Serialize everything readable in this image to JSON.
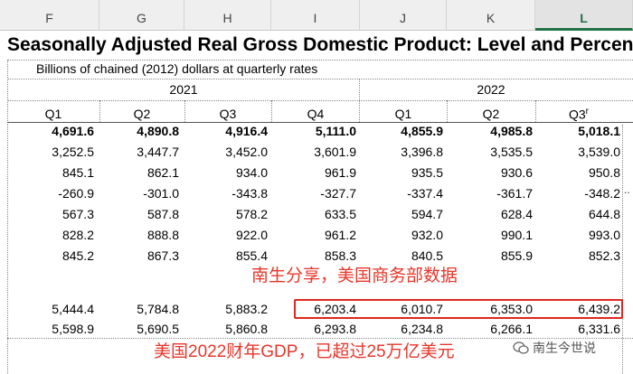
{
  "columns": [
    "F",
    "G",
    "H",
    "I",
    "J",
    "K",
    "L"
  ],
  "title": "Seasonally Adjusted Real Gross Domestic Product: Level and Percent Char",
  "subtitle": "Billions of chained (2012) dollars at quarterly rates",
  "years": [
    "2021",
    "2022"
  ],
  "quarters": [
    "Q1",
    "Q2",
    "Q3",
    "Q4",
    "Q1",
    "Q2",
    "Q3"
  ],
  "q3_superscript": "r",
  "rows": [
    [
      "4,691.6",
      "4,890.8",
      "4,916.4",
      "5,111.0",
      "4,855.9",
      "4,985.8",
      "5,018.1"
    ],
    [
      "3,252.5",
      "3,447.7",
      "3,452.0",
      "3,601.9",
      "3,396.8",
      "3,535.5",
      "3,539.0"
    ],
    [
      "845.1",
      "862.1",
      "934.0",
      "961.9",
      "935.5",
      "930.6",
      "950.8"
    ],
    [
      "-260.9",
      "-301.0",
      "-343.8",
      "-327.7",
      "-337.4",
      "-361.7",
      "-348.2"
    ],
    [
      "567.3",
      "587.8",
      "578.2",
      "633.5",
      "594.7",
      "628.4",
      "644.8"
    ],
    [
      "828.2",
      "888.8",
      "922.0",
      "961.2",
      "932.0",
      "990.1",
      "993.0"
    ],
    [
      "845.2",
      "867.3",
      "855.4",
      "858.3",
      "840.5",
      "855.9",
      "852.3"
    ]
  ],
  "lower_rows": [
    [
      "5,444.4",
      "5,784.8",
      "5,883.2",
      "6,203.4",
      "6,010.7",
      "6,353.0",
      "6,439.2"
    ],
    [
      "5,598.9",
      "5,690.5",
      "5,860.8",
      "6,293.8",
      "6,234.8",
      "6,266.1",
      "6,331.6"
    ]
  ],
  "annotation_top": "南生分享，美国商务部数据",
  "annotation_bottom": "美国2022财年GDP，已超过25万亿美元",
  "watermark": "南生今世说",
  "colors": {
    "accent": "#e8362b",
    "excel_green": "#217346"
  }
}
